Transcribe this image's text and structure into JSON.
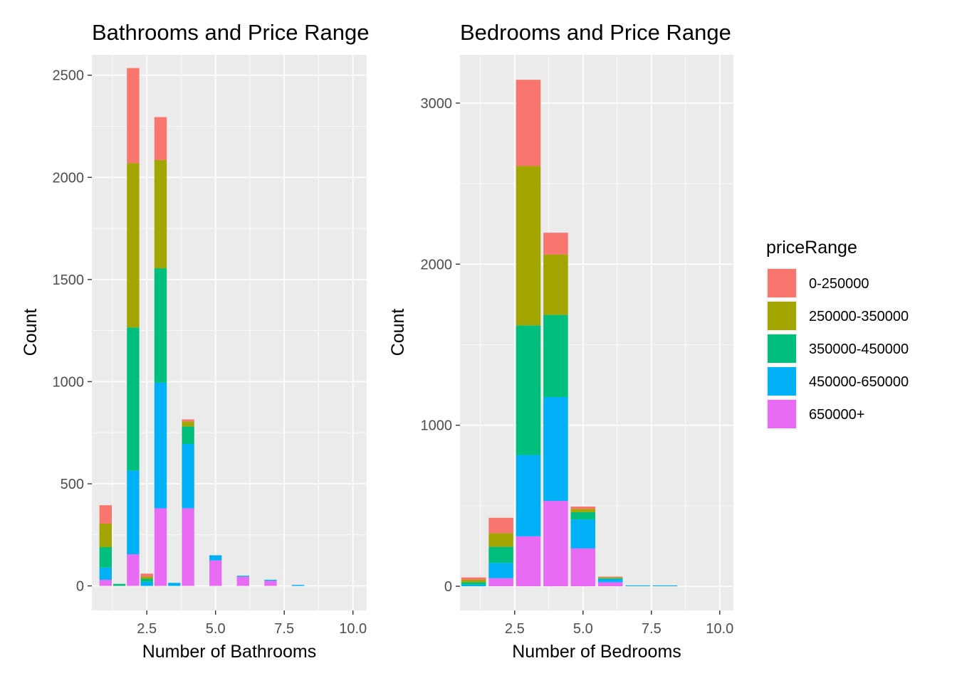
{
  "legend": {
    "title": "priceRange",
    "position": "right",
    "entries": [
      {
        "label": "0-250000",
        "color": "#F8766D"
      },
      {
        "label": "250000-350000",
        "color": "#A3A500"
      },
      {
        "label": "350000-450000",
        "color": "#00BF7D"
      },
      {
        "label": "450000-650000",
        "color": "#00B0F6"
      },
      {
        "label": "650000+",
        "color": "#E76BF3"
      }
    ]
  },
  "chart_data": [
    {
      "type": "bar",
      "stacked": true,
      "title": "Bathrooms and Price Range",
      "xlabel": "Number of Bathrooms",
      "ylabel": "Count",
      "xlim": [
        0.5,
        10.5
      ],
      "ylim": [
        -120,
        2600
      ],
      "xticks": [
        2.5,
        5.0,
        7.5,
        10.0
      ],
      "xtick_labels": [
        "2.5",
        "5.0",
        "7.5",
        "10.0"
      ],
      "yticks": [
        0,
        500,
        1000,
        1500,
        2000,
        2500
      ],
      "ytick_labels": [
        "0",
        "500",
        "1000",
        "1500",
        "2000",
        "2500"
      ],
      "grid": true,
      "bar_width": 0.45,
      "x": [
        1.0,
        1.5,
        2.0,
        2.5,
        3.0,
        3.5,
        4.0,
        5.0,
        6.0,
        7.0,
        8.0
      ],
      "series": [
        {
          "name": "650000+",
          "values": [
            30,
            0,
            155,
            0,
            380,
            0,
            380,
            125,
            45,
            25,
            0
          ]
        },
        {
          "name": "450000-650000",
          "values": [
            60,
            0,
            410,
            20,
            615,
            15,
            315,
            25,
            5,
            5,
            5
          ]
        },
        {
          "name": "350000-450000",
          "values": [
            100,
            10,
            700,
            15,
            560,
            0,
            85,
            0,
            0,
            0,
            0
          ]
        },
        {
          "name": "250000-350000",
          "values": [
            115,
            0,
            805,
            10,
            530,
            0,
            25,
            0,
            0,
            0,
            0
          ]
        },
        {
          "name": "0-250000",
          "values": [
            90,
            0,
            465,
            15,
            210,
            0,
            10,
            0,
            0,
            0,
            0
          ]
        }
      ]
    },
    {
      "type": "bar",
      "stacked": true,
      "title": "Bedrooms and Price Range",
      "xlabel": "Number of Bedrooms",
      "ylabel": "Count",
      "xlim": [
        0.5,
        10.5
      ],
      "ylim": [
        -150,
        3300
      ],
      "xticks": [
        2.5,
        5.0,
        7.5,
        10.0
      ],
      "xtick_labels": [
        "2.5",
        "5.0",
        "7.5",
        "10.0"
      ],
      "yticks": [
        0,
        1000,
        2000,
        3000
      ],
      "ytick_labels": [
        "0",
        "1000",
        "2000",
        "3000"
      ],
      "grid": true,
      "bar_width": 0.9,
      "x": [
        1,
        2,
        3,
        4,
        5,
        6,
        7,
        8
      ],
      "series": [
        {
          "name": "650000+",
          "values": [
            0,
            50,
            310,
            530,
            235,
            25,
            0,
            0
          ]
        },
        {
          "name": "450000-650000",
          "values": [
            10,
            95,
            505,
            645,
            180,
            20,
            5,
            5
          ]
        },
        {
          "name": "350000-450000",
          "values": [
            15,
            100,
            805,
            510,
            45,
            5,
            0,
            0
          ]
        },
        {
          "name": "250000-350000",
          "values": [
            15,
            85,
            990,
            375,
            20,
            5,
            0,
            0
          ]
        },
        {
          "name": "0-250000",
          "values": [
            15,
            95,
            535,
            135,
            15,
            5,
            0,
            0
          ]
        }
      ]
    }
  ]
}
